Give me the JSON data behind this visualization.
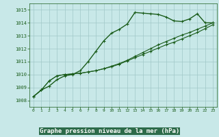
{
  "title": "Graphe pression niveau de la mer (hPa)",
  "background_color": "#c8e8e8",
  "plot_bg_color": "#c8e8e8",
  "bottom_strip_color": "#2d6b4a",
  "grid_color": "#a0c8c8",
  "line_color": "#1a5c1a",
  "tick_label_color": "#1a5c1a",
  "xlim": [
    -0.5,
    23.5
  ],
  "ylim": [
    1007.5,
    1015.5
  ],
  "yticks": [
    1008,
    1009,
    1010,
    1011,
    1012,
    1013,
    1014,
    1015
  ],
  "xticks": [
    0,
    1,
    2,
    3,
    4,
    5,
    6,
    7,
    8,
    9,
    10,
    11,
    12,
    13,
    14,
    15,
    16,
    17,
    18,
    19,
    20,
    21,
    22,
    23
  ],
  "series": [
    [
      1008.3,
      1008.8,
      1009.1,
      1009.6,
      1009.9,
      1010.0,
      1010.3,
      1011.0,
      1011.8,
      1012.6,
      1013.2,
      1013.5,
      1013.9,
      1014.8,
      1014.75,
      1014.7,
      1014.65,
      1014.45,
      1014.15,
      1014.1,
      1014.3,
      1014.7,
      1014.0,
      1014.0
    ],
    [
      1008.3,
      1008.8,
      1009.5,
      1009.9,
      1010.0,
      1010.05,
      1010.1,
      1010.2,
      1010.3,
      1010.45,
      1010.65,
      1010.85,
      1011.1,
      1011.4,
      1011.7,
      1012.0,
      1012.3,
      1012.55,
      1012.8,
      1013.05,
      1013.25,
      1013.5,
      1013.75,
      1014.0
    ],
    [
      1008.3,
      1008.8,
      1009.5,
      1009.9,
      1010.0,
      1010.05,
      1010.1,
      1010.2,
      1010.3,
      1010.45,
      1010.6,
      1010.8,
      1011.05,
      1011.3,
      1011.55,
      1011.8,
      1012.05,
      1012.3,
      1012.5,
      1012.75,
      1013.0,
      1013.25,
      1013.55,
      1013.85
    ]
  ],
  "xlabel_fontsize": 6.0,
  "ylabel_fontsize": 5.5,
  "title_fontsize": 6.5
}
